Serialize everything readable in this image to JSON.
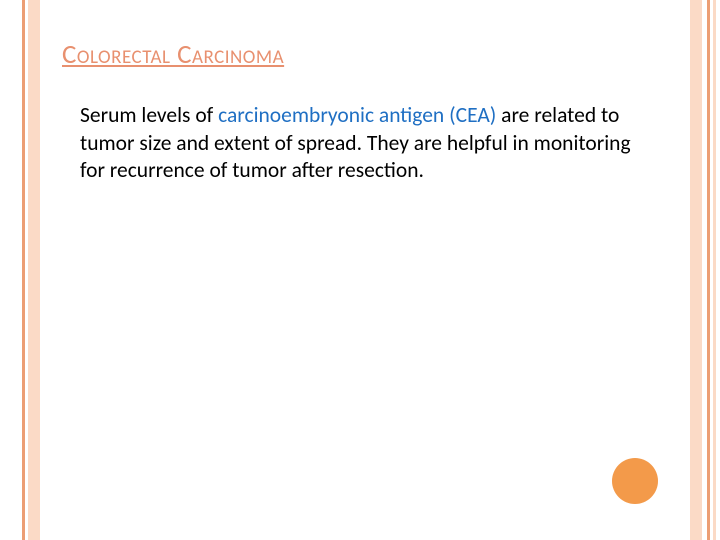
{
  "slide": {
    "background_color": "#ffffff",
    "border": {
      "light_color": "#fbdac6",
      "dark_color": "#ec9e74"
    },
    "title": {
      "text": "Colorectal Carcinoma",
      "color": "#e8906f",
      "fontsize": 27
    },
    "body": {
      "pre_text": "Serum levels of ",
      "highlight_text": "carcinoembryonic antigen (CEA)",
      "post_text": " are related to tumor size and extent of spread.  They are helpful  in monitoring for recurrence of tumor after resection.",
      "text_color": "#000000",
      "highlight_color": "#1f6fc3",
      "fontsize": 21.5
    },
    "accent_circle": {
      "color": "#f39a4a",
      "diameter": 46
    }
  }
}
